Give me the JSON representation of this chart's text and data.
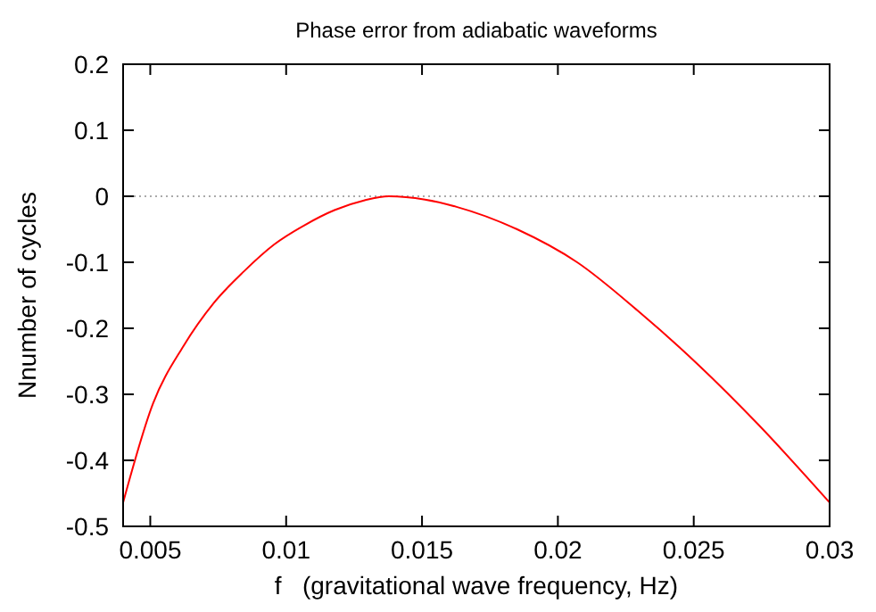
{
  "chart_data": {
    "type": "line",
    "title": "Phase error from adiabatic waveforms",
    "xlabel": "f   (gravitational wave frequency, Hz)",
    "ylabel": "Nnumber of cycles",
    "x": [
      0.004,
      0.0051,
      0.00622,
      0.00733,
      0.00844,
      0.00956,
      0.01067,
      0.01178,
      0.01289,
      0.01378,
      0.01511,
      0.01627,
      0.0185,
      0.02071,
      0.02293,
      0.02516,
      0.02738,
      0.03
    ],
    "series": [
      {
        "color": "#ff0000",
        "values": [
          -0.464,
          -0.314,
          -0.227,
          -0.162,
          -0.114,
          -0.073,
          -0.044,
          -0.021,
          -0.006,
          0,
          -0.005,
          -0.016,
          -0.05,
          -0.1,
          -0.173,
          -0.255,
          -0.346,
          -0.464
        ]
      }
    ],
    "xlim": [
      0.004,
      0.03
    ],
    "xticks": [
      0.005,
      0.01,
      0.015,
      0.02,
      0.025,
      0.03
    ],
    "ylim": [
      -0.5,
      0.2
    ],
    "yticks": [
      -0.5,
      -0.4,
      -0.3,
      -0.2,
      -0.1,
      0,
      0.1,
      0.2
    ],
    "ref_lines": [
      {
        "axis": "y",
        "value": 0,
        "color": "#aaaaaa",
        "line_style": "dotted"
      }
    ],
    "grid": false,
    "marker": "none",
    "line_style": "solid"
  }
}
